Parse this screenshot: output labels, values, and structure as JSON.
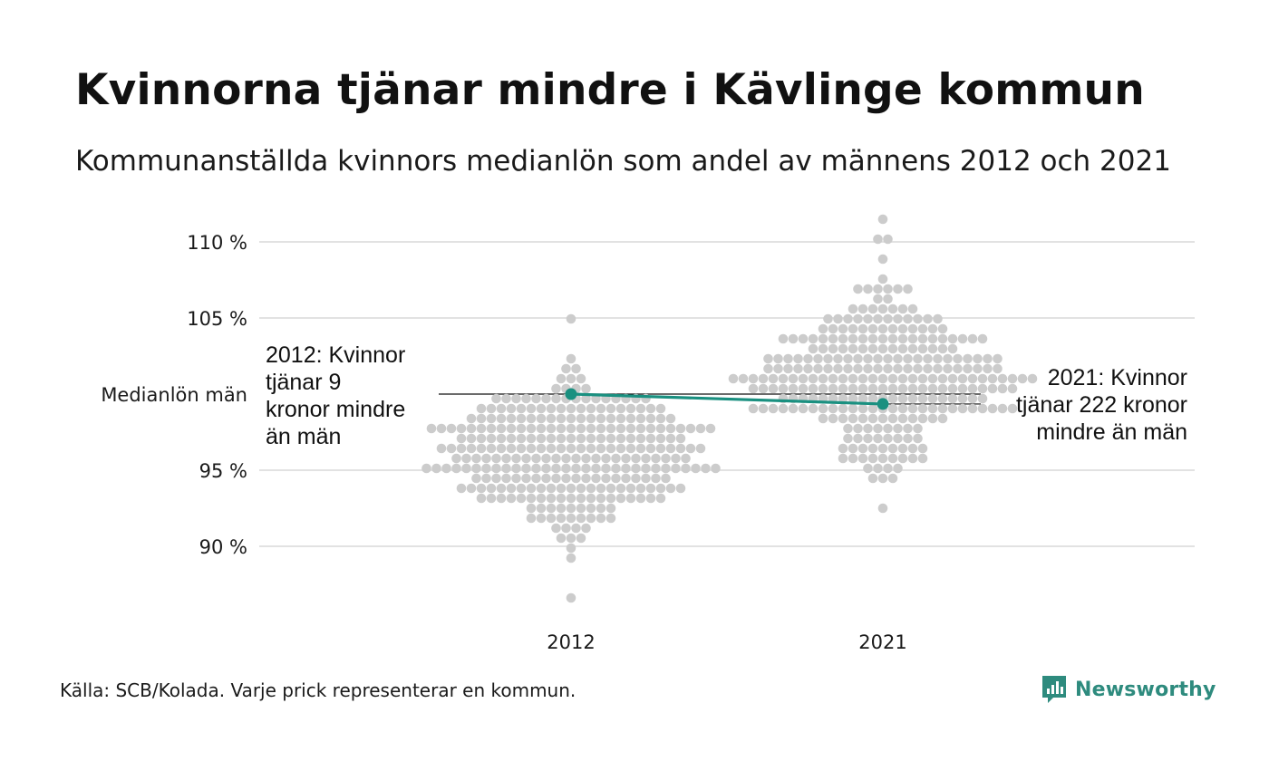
{
  "title": "Kvinnorna tjänar mindre i Kävlinge kommun",
  "subtitle": "Kommunanställda kvinnors medianlön som andel av männens 2012 och 2021",
  "source": "Källa: SCB/Kolada. Varje prick representerar en kommun.",
  "brand": {
    "name": "Newsworthy",
    "icon": "newsworthy-logo-icon",
    "color": "#2e8b7e"
  },
  "colors": {
    "dots": "#cccccc",
    "highlight": "#1a9080",
    "grid": "#e2e2e2",
    "reference": "#111111"
  },
  "chart_data": {
    "type": "scatter",
    "subtype": "beeswarm",
    "categories": [
      "2012",
      "2021"
    ],
    "ylim": [
      86,
      111.5
    ],
    "y_ticks": [
      {
        "value": 90,
        "label": "90 %"
      },
      {
        "value": 95,
        "label": "95 %"
      },
      {
        "value": 100,
        "label": "Medianlön män"
      },
      {
        "value": 105,
        "label": "105 %"
      },
      {
        "value": 110,
        "label": "110 %"
      }
    ],
    "grid": true,
    "reference_line": {
      "value": 100
    },
    "series": [
      {
        "category": "2012",
        "distribution": {
          "count": 290,
          "median": 96.0,
          "sd": 2.55,
          "min": 86.4,
          "max": 105.2
        },
        "highlight": {
          "value": 100.0,
          "annotation": [
            "2012: Kvinnor",
            "tjänar 9",
            "kronor mindre",
            "än män"
          ]
        }
      },
      {
        "category": "2021",
        "distribution": {
          "count": 290,
          "median": 101.2,
          "sd": 2.7,
          "min": 92.5,
          "max": 111.4
        },
        "highlight": {
          "value": 99.35,
          "annotation": [
            "2021: Kvinnor",
            "tjänar 222 kronor",
            "mindre än män"
          ]
        }
      }
    ]
  }
}
